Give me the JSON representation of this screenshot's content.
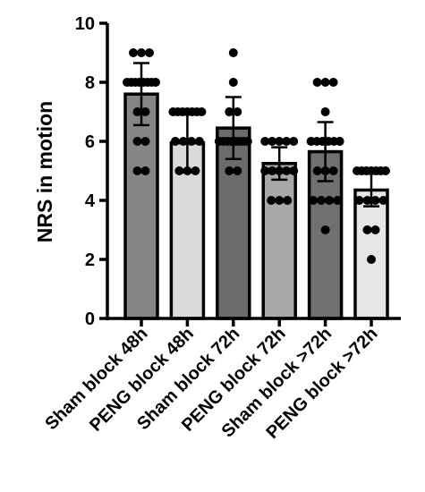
{
  "chart_data": {
    "type": "bar",
    "title": "",
    "xlabel": "",
    "ylabel": "NRS in motion",
    "ylim": [
      0,
      10
    ],
    "yticks": [
      0,
      2,
      4,
      6,
      8,
      10
    ],
    "categories": [
      "Sham block 48h",
      "PENG block 48h",
      "Sham block 72h",
      "PENG block 72h",
      "Sham block >72h",
      "PENG block >72h"
    ],
    "values": [
      7.6,
      5.95,
      6.45,
      5.25,
      5.65,
      4.35
    ],
    "error": [
      1.05,
      1.0,
      1.05,
      0.55,
      1.0,
      0.55
    ],
    "bar_colors": [
      "#858585",
      "#dadada",
      "#6b6b6b",
      "#a8a8a8",
      "#707070",
      "#e6e6e6"
    ],
    "points": [
      [
        9,
        9,
        9,
        8,
        8,
        8,
        8,
        8,
        8,
        8,
        8,
        7,
        7,
        6,
        6,
        5,
        5
      ],
      [
        7,
        7,
        7,
        7,
        7,
        7,
        7,
        6,
        6,
        6,
        6,
        5,
        5,
        5
      ],
      [
        9,
        8,
        7,
        7,
        6,
        6,
        6,
        6,
        6,
        6,
        6,
        6,
        5,
        5
      ],
      [
        6,
        6,
        6,
        6,
        6,
        5,
        5,
        5,
        5,
        5,
        4,
        4,
        4
      ],
      [
        8,
        8,
        8,
        7,
        6,
        6,
        6,
        6,
        6,
        6,
        5,
        5,
        5,
        4,
        4,
        4,
        4,
        3
      ],
      [
        5,
        5,
        5,
        5,
        5,
        5,
        5,
        4,
        4,
        4,
        4,
        3,
        3,
        2
      ]
    ],
    "grid": false,
    "legend": "none"
  }
}
